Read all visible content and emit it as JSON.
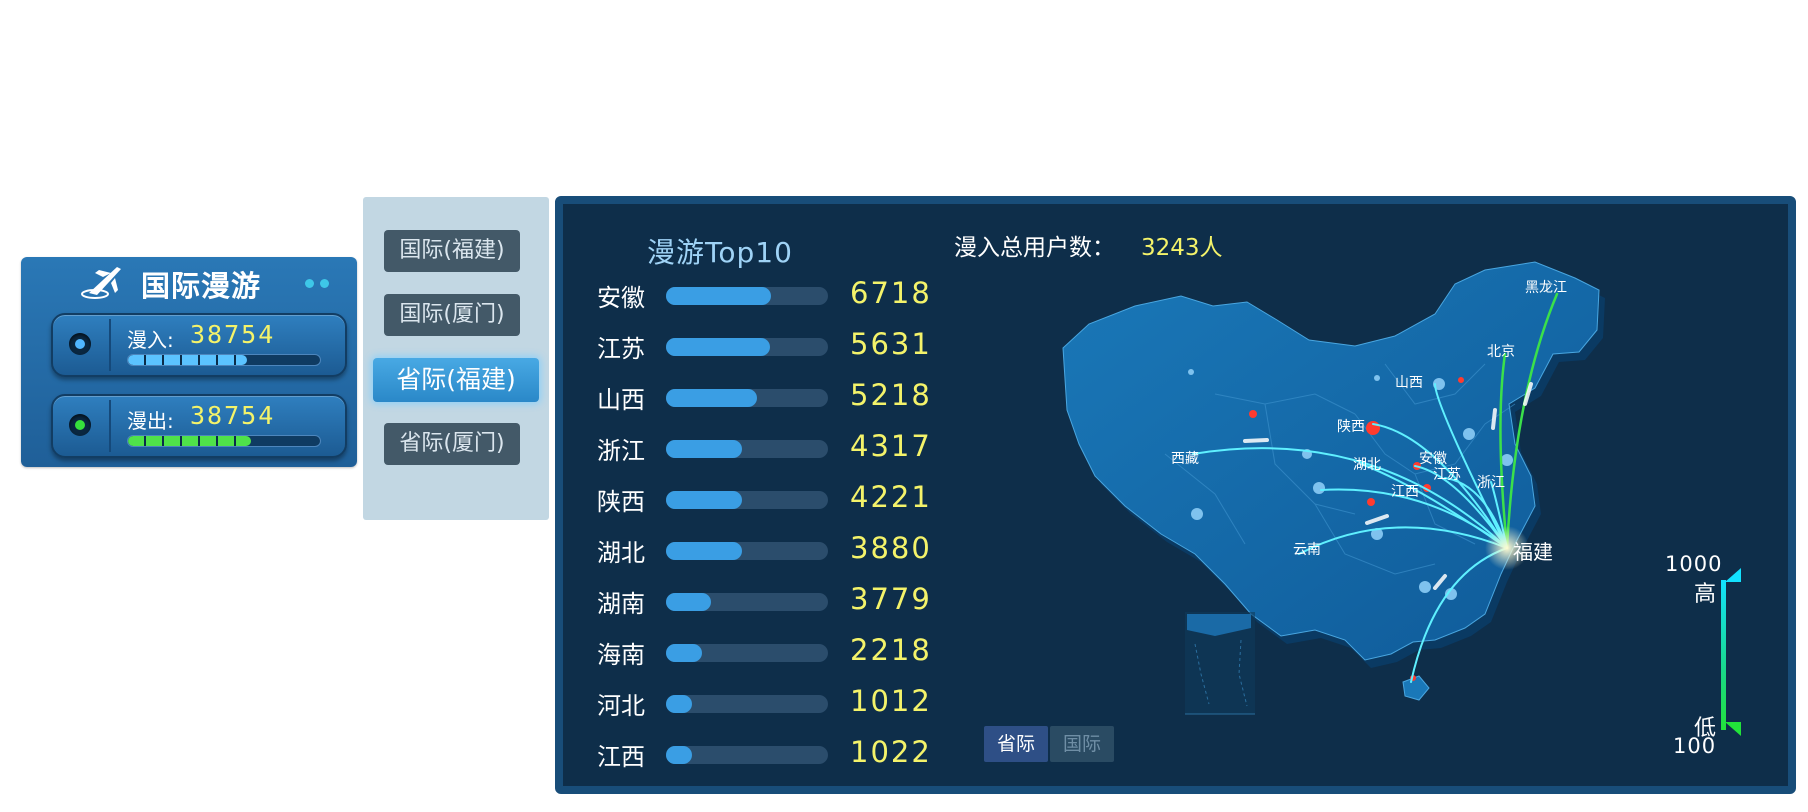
{
  "intl_card": {
    "title": "国际漫游",
    "dots_colors": [
      "#3ec7e8",
      "#3ec7e8"
    ],
    "inbound": {
      "label": "漫入:",
      "value": "38754",
      "led_color": "#4fb6ff",
      "progress": 0.62,
      "fill_color": "#5bc3ff"
    },
    "outbound": {
      "label": "漫出:",
      "value": "38754",
      "led_color": "#36e03c",
      "progress": 0.64,
      "fill_color": "#4fe24a"
    }
  },
  "scope_selector": {
    "options": [
      "国际(福建)",
      "国际(厦门)",
      "省际(福建)",
      "省际(厦门)"
    ],
    "active_index": 2
  },
  "top10": {
    "title": "漫游Top10",
    "items": [
      {
        "name": "安徽",
        "value": "6718",
        "fraction": 0.65
      },
      {
        "name": "江苏",
        "value": "5631",
        "fraction": 0.64
      },
      {
        "name": "山西",
        "value": "5218",
        "fraction": 0.56
      },
      {
        "name": "浙江",
        "value": "4317",
        "fraction": 0.47
      },
      {
        "name": "陕西",
        "value": "4221",
        "fraction": 0.47
      },
      {
        "name": "湖北",
        "value": "3880",
        "fraction": 0.47
      },
      {
        "name": "湖南",
        "value": "3779",
        "fraction": 0.28
      },
      {
        "name": "海南",
        "value": "2218",
        "fraction": 0.22
      },
      {
        "name": "河北",
        "value": "1012",
        "fraction": 0.16
      },
      {
        "name": "江西",
        "value": "1022",
        "fraction": 0.16
      }
    ]
  },
  "summary": {
    "label": "漫入总用户数：",
    "value": "3243人"
  },
  "map": {
    "destination": "福建",
    "provinces": [
      "黑龙江",
      "北京",
      "山西",
      "陕西",
      "西藏",
      "湖北",
      "安徽",
      "江苏",
      "浙江",
      "江西",
      "云南"
    ],
    "tabs": [
      "省际",
      "国际"
    ],
    "active_tab": 0
  },
  "legend": {
    "high_value": "1000",
    "high_label": "高",
    "low_label": "低",
    "low_value": "100"
  },
  "colors": {
    "accent_yellow": "#f4f36a",
    "bar_blue": "#3a9ee4",
    "panel_bg": "#0e2e4a",
    "flow_line": "#5ff0ff"
  }
}
